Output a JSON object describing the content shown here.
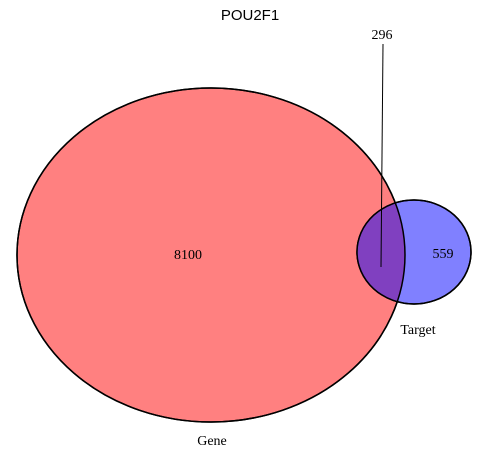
{
  "title": "POU2F1",
  "sets": [
    {
      "name": "Gene",
      "color": "#ff8080"
    },
    {
      "name": "Target",
      "color": "#8080ff"
    }
  ],
  "regions": {
    "gene_only": "8100",
    "intersection": "296",
    "target_only": "559"
  },
  "overlap_color": "#8040c0"
}
